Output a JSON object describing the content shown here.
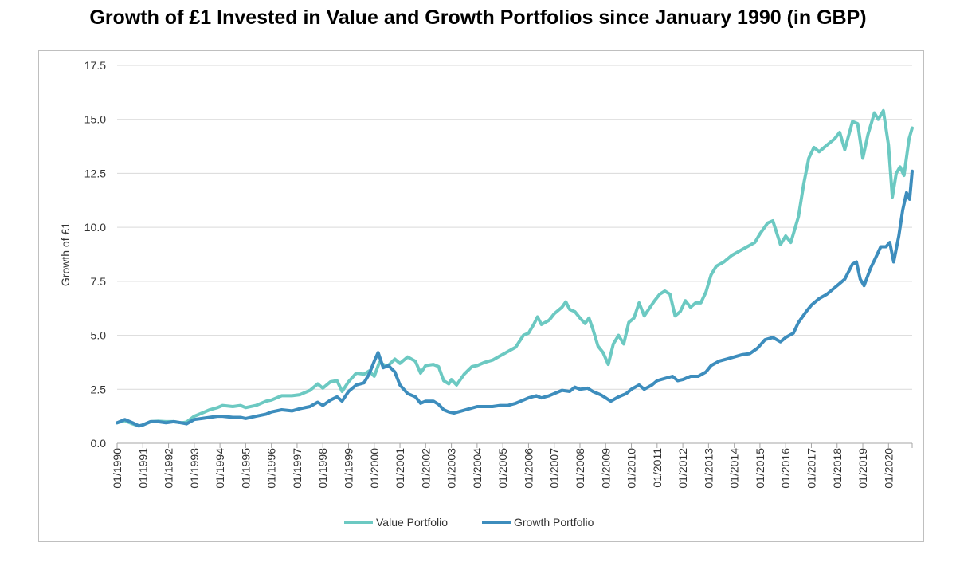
{
  "chart_data": {
    "type": "line",
    "title": "Growth of £1 Invested in Value and Growth Portfolios since January 1990 (in GBP)",
    "xlabel": "",
    "ylabel": "Growth of £1",
    "ylim": [
      0,
      17.5
    ],
    "yticks": [
      "0.0",
      "2.5",
      "5.0",
      "7.5",
      "10.0",
      "12.5",
      "15.0",
      "17.5"
    ],
    "xlim": [
      1990.0,
      2020.92
    ],
    "xticks": [
      "01/1990",
      "01/1991",
      "01/1992",
      "01/1993",
      "01/1994",
      "01/1995",
      "01/1996",
      "01/1997",
      "01/1998",
      "01/1999",
      "01/2000",
      "01/2001",
      "01/2002",
      "01/2003",
      "01/2004",
      "01/2005",
      "01/2006",
      "01/2007",
      "01/2008",
      "01/2009",
      "01/2010",
      "01/2011",
      "01/2012",
      "01/2013",
      "01/2014",
      "01/2015",
      "01/2016",
      "01/2017",
      "01/2018",
      "01/2019",
      "01/2020"
    ],
    "grid": "horizontal",
    "legend": "bottom",
    "series": [
      {
        "name": "Value Portfolio",
        "color": "#6cc9c2",
        "points": [
          [
            1990.0,
            0.95
          ],
          [
            1990.3,
            1.05
          ],
          [
            1990.6,
            0.9
          ],
          [
            1990.85,
            0.8
          ],
          [
            1991.0,
            0.85
          ],
          [
            1991.3,
            1.0
          ],
          [
            1991.6,
            1.02
          ],
          [
            1991.9,
            1.0
          ],
          [
            1992.2,
            1.0
          ],
          [
            1992.5,
            0.95
          ],
          [
            1992.7,
            0.98
          ],
          [
            1993.0,
            1.25
          ],
          [
            1993.3,
            1.4
          ],
          [
            1993.6,
            1.55
          ],
          [
            1993.9,
            1.65
          ],
          [
            1994.1,
            1.75
          ],
          [
            1994.5,
            1.7
          ],
          [
            1994.8,
            1.75
          ],
          [
            1995.0,
            1.65
          ],
          [
            1995.4,
            1.75
          ],
          [
            1995.8,
            1.95
          ],
          [
            1996.0,
            2.0
          ],
          [
            1996.4,
            2.2
          ],
          [
            1996.8,
            2.2
          ],
          [
            1997.1,
            2.25
          ],
          [
            1997.5,
            2.45
          ],
          [
            1997.8,
            2.75
          ],
          [
            1998.0,
            2.55
          ],
          [
            1998.3,
            2.85
          ],
          [
            1998.55,
            2.9
          ],
          [
            1998.75,
            2.4
          ],
          [
            1999.0,
            2.85
          ],
          [
            1999.3,
            3.25
          ],
          [
            1999.6,
            3.2
          ],
          [
            1999.8,
            3.35
          ],
          [
            2000.0,
            3.1
          ],
          [
            2000.2,
            3.75
          ],
          [
            2000.5,
            3.55
          ],
          [
            2000.8,
            3.9
          ],
          [
            2001.0,
            3.7
          ],
          [
            2001.3,
            4.0
          ],
          [
            2001.6,
            3.8
          ],
          [
            2001.8,
            3.25
          ],
          [
            2002.0,
            3.6
          ],
          [
            2002.3,
            3.65
          ],
          [
            2002.5,
            3.55
          ],
          [
            2002.7,
            2.9
          ],
          [
            2002.9,
            2.75
          ],
          [
            2003.0,
            2.95
          ],
          [
            2003.2,
            2.7
          ],
          [
            2003.5,
            3.2
          ],
          [
            2003.8,
            3.55
          ],
          [
            2004.0,
            3.6
          ],
          [
            2004.3,
            3.75
          ],
          [
            2004.6,
            3.85
          ],
          [
            2004.9,
            4.05
          ],
          [
            2005.2,
            4.25
          ],
          [
            2005.5,
            4.45
          ],
          [
            2005.8,
            5.0
          ],
          [
            2006.0,
            5.1
          ],
          [
            2006.2,
            5.5
          ],
          [
            2006.35,
            5.85
          ],
          [
            2006.5,
            5.5
          ],
          [
            2006.8,
            5.7
          ],
          [
            2007.0,
            6.0
          ],
          [
            2007.3,
            6.3
          ],
          [
            2007.45,
            6.55
          ],
          [
            2007.6,
            6.2
          ],
          [
            2007.8,
            6.1
          ],
          [
            2008.0,
            5.8
          ],
          [
            2008.2,
            5.55
          ],
          [
            2008.35,
            5.8
          ],
          [
            2008.5,
            5.3
          ],
          [
            2008.7,
            4.5
          ],
          [
            2008.9,
            4.2
          ],
          [
            2009.1,
            3.65
          ],
          [
            2009.3,
            4.6
          ],
          [
            2009.5,
            5.0
          ],
          [
            2009.7,
            4.6
          ],
          [
            2009.9,
            5.6
          ],
          [
            2010.1,
            5.8
          ],
          [
            2010.3,
            6.5
          ],
          [
            2010.5,
            5.9
          ],
          [
            2010.7,
            6.25
          ],
          [
            2010.9,
            6.6
          ],
          [
            2011.1,
            6.9
          ],
          [
            2011.3,
            7.05
          ],
          [
            2011.5,
            6.9
          ],
          [
            2011.7,
            5.9
          ],
          [
            2011.9,
            6.1
          ],
          [
            2012.1,
            6.6
          ],
          [
            2012.3,
            6.3
          ],
          [
            2012.5,
            6.5
          ],
          [
            2012.7,
            6.5
          ],
          [
            2012.9,
            7.0
          ],
          [
            2013.1,
            7.8
          ],
          [
            2013.3,
            8.2
          ],
          [
            2013.6,
            8.4
          ],
          [
            2013.9,
            8.7
          ],
          [
            2014.2,
            8.9
          ],
          [
            2014.5,
            9.1
          ],
          [
            2014.8,
            9.3
          ],
          [
            2015.0,
            9.7
          ],
          [
            2015.3,
            10.2
          ],
          [
            2015.5,
            10.3
          ],
          [
            2015.8,
            9.2
          ],
          [
            2016.0,
            9.6
          ],
          [
            2016.2,
            9.3
          ],
          [
            2016.5,
            10.5
          ],
          [
            2016.7,
            12.0
          ],
          [
            2016.9,
            13.2
          ],
          [
            2017.1,
            13.7
          ],
          [
            2017.3,
            13.5
          ],
          [
            2017.6,
            13.8
          ],
          [
            2017.9,
            14.1
          ],
          [
            2018.1,
            14.4
          ],
          [
            2018.3,
            13.6
          ],
          [
            2018.6,
            14.9
          ],
          [
            2018.8,
            14.8
          ],
          [
            2019.0,
            13.2
          ],
          [
            2019.2,
            14.3
          ],
          [
            2019.45,
            15.3
          ],
          [
            2019.6,
            15.0
          ],
          [
            2019.8,
            15.4
          ],
          [
            2020.0,
            13.8
          ],
          [
            2020.15,
            11.4
          ],
          [
            2020.3,
            12.5
          ],
          [
            2020.45,
            12.8
          ],
          [
            2020.6,
            12.4
          ],
          [
            2020.8,
            14.1
          ],
          [
            2020.92,
            14.6
          ]
        ]
      },
      {
        "name": "Growth Portfolio",
        "color": "#3d8dbd",
        "points": [
          [
            1990.0,
            0.95
          ],
          [
            1990.3,
            1.1
          ],
          [
            1990.6,
            0.95
          ],
          [
            1990.85,
            0.8
          ],
          [
            1991.0,
            0.85
          ],
          [
            1991.3,
            1.0
          ],
          [
            1991.6,
            1.0
          ],
          [
            1991.9,
            0.95
          ],
          [
            1992.2,
            1.0
          ],
          [
            1992.5,
            0.95
          ],
          [
            1992.7,
            0.9
          ],
          [
            1993.0,
            1.1
          ],
          [
            1993.3,
            1.15
          ],
          [
            1993.6,
            1.2
          ],
          [
            1993.9,
            1.25
          ],
          [
            1994.1,
            1.25
          ],
          [
            1994.5,
            1.2
          ],
          [
            1994.8,
            1.2
          ],
          [
            1995.0,
            1.15
          ],
          [
            1995.4,
            1.25
          ],
          [
            1995.8,
            1.35
          ],
          [
            1996.0,
            1.45
          ],
          [
            1996.4,
            1.55
          ],
          [
            1996.8,
            1.5
          ],
          [
            1997.1,
            1.6
          ],
          [
            1997.5,
            1.7
          ],
          [
            1997.8,
            1.9
          ],
          [
            1998.0,
            1.75
          ],
          [
            1998.3,
            2.0
          ],
          [
            1998.55,
            2.15
          ],
          [
            1998.75,
            1.95
          ],
          [
            1999.0,
            2.4
          ],
          [
            1999.3,
            2.7
          ],
          [
            1999.6,
            2.8
          ],
          [
            1999.8,
            3.2
          ],
          [
            2000.0,
            3.8
          ],
          [
            2000.15,
            4.2
          ],
          [
            2000.35,
            3.5
          ],
          [
            2000.55,
            3.6
          ],
          [
            2000.8,
            3.3
          ],
          [
            2001.0,
            2.7
          ],
          [
            2001.3,
            2.3
          ],
          [
            2001.6,
            2.15
          ],
          [
            2001.8,
            1.85
          ],
          [
            2002.0,
            1.95
          ],
          [
            2002.3,
            1.95
          ],
          [
            2002.5,
            1.8
          ],
          [
            2002.7,
            1.55
          ],
          [
            2002.9,
            1.45
          ],
          [
            2003.1,
            1.4
          ],
          [
            2003.4,
            1.5
          ],
          [
            2003.7,
            1.6
          ],
          [
            2004.0,
            1.7
          ],
          [
            2004.3,
            1.7
          ],
          [
            2004.6,
            1.7
          ],
          [
            2004.9,
            1.75
          ],
          [
            2005.2,
            1.75
          ],
          [
            2005.5,
            1.85
          ],
          [
            2005.8,
            2.0
          ],
          [
            2006.0,
            2.1
          ],
          [
            2006.3,
            2.2
          ],
          [
            2006.5,
            2.1
          ],
          [
            2006.8,
            2.2
          ],
          [
            2007.0,
            2.3
          ],
          [
            2007.3,
            2.45
          ],
          [
            2007.6,
            2.4
          ],
          [
            2007.8,
            2.6
          ],
          [
            2008.0,
            2.5
          ],
          [
            2008.3,
            2.55
          ],
          [
            2008.5,
            2.4
          ],
          [
            2008.8,
            2.25
          ],
          [
            2009.0,
            2.1
          ],
          [
            2009.2,
            1.95
          ],
          [
            2009.5,
            2.15
          ],
          [
            2009.8,
            2.3
          ],
          [
            2010.0,
            2.5
          ],
          [
            2010.3,
            2.7
          ],
          [
            2010.5,
            2.5
          ],
          [
            2010.8,
            2.7
          ],
          [
            2011.0,
            2.9
          ],
          [
            2011.3,
            3.0
          ],
          [
            2011.6,
            3.1
          ],
          [
            2011.8,
            2.9
          ],
          [
            2012.0,
            2.95
          ],
          [
            2012.3,
            3.1
          ],
          [
            2012.6,
            3.1
          ],
          [
            2012.9,
            3.3
          ],
          [
            2013.1,
            3.6
          ],
          [
            2013.4,
            3.8
          ],
          [
            2013.7,
            3.9
          ],
          [
            2014.0,
            4.0
          ],
          [
            2014.3,
            4.1
          ],
          [
            2014.6,
            4.15
          ],
          [
            2014.9,
            4.4
          ],
          [
            2015.2,
            4.8
          ],
          [
            2015.5,
            4.9
          ],
          [
            2015.8,
            4.7
          ],
          [
            2016.0,
            4.9
          ],
          [
            2016.3,
            5.1
          ],
          [
            2016.5,
            5.6
          ],
          [
            2016.8,
            6.1
          ],
          [
            2017.0,
            6.4
          ],
          [
            2017.3,
            6.7
          ],
          [
            2017.6,
            6.9
          ],
          [
            2017.9,
            7.2
          ],
          [
            2018.1,
            7.4
          ],
          [
            2018.3,
            7.6
          ],
          [
            2018.6,
            8.3
          ],
          [
            2018.75,
            8.4
          ],
          [
            2018.9,
            7.6
          ],
          [
            2019.05,
            7.3
          ],
          [
            2019.3,
            8.1
          ],
          [
            2019.5,
            8.6
          ],
          [
            2019.7,
            9.1
          ],
          [
            2019.9,
            9.1
          ],
          [
            2020.05,
            9.3
          ],
          [
            2020.2,
            8.4
          ],
          [
            2020.4,
            9.6
          ],
          [
            2020.55,
            10.8
          ],
          [
            2020.7,
            11.6
          ],
          [
            2020.82,
            11.3
          ],
          [
            2020.92,
            12.6
          ]
        ]
      }
    ]
  }
}
